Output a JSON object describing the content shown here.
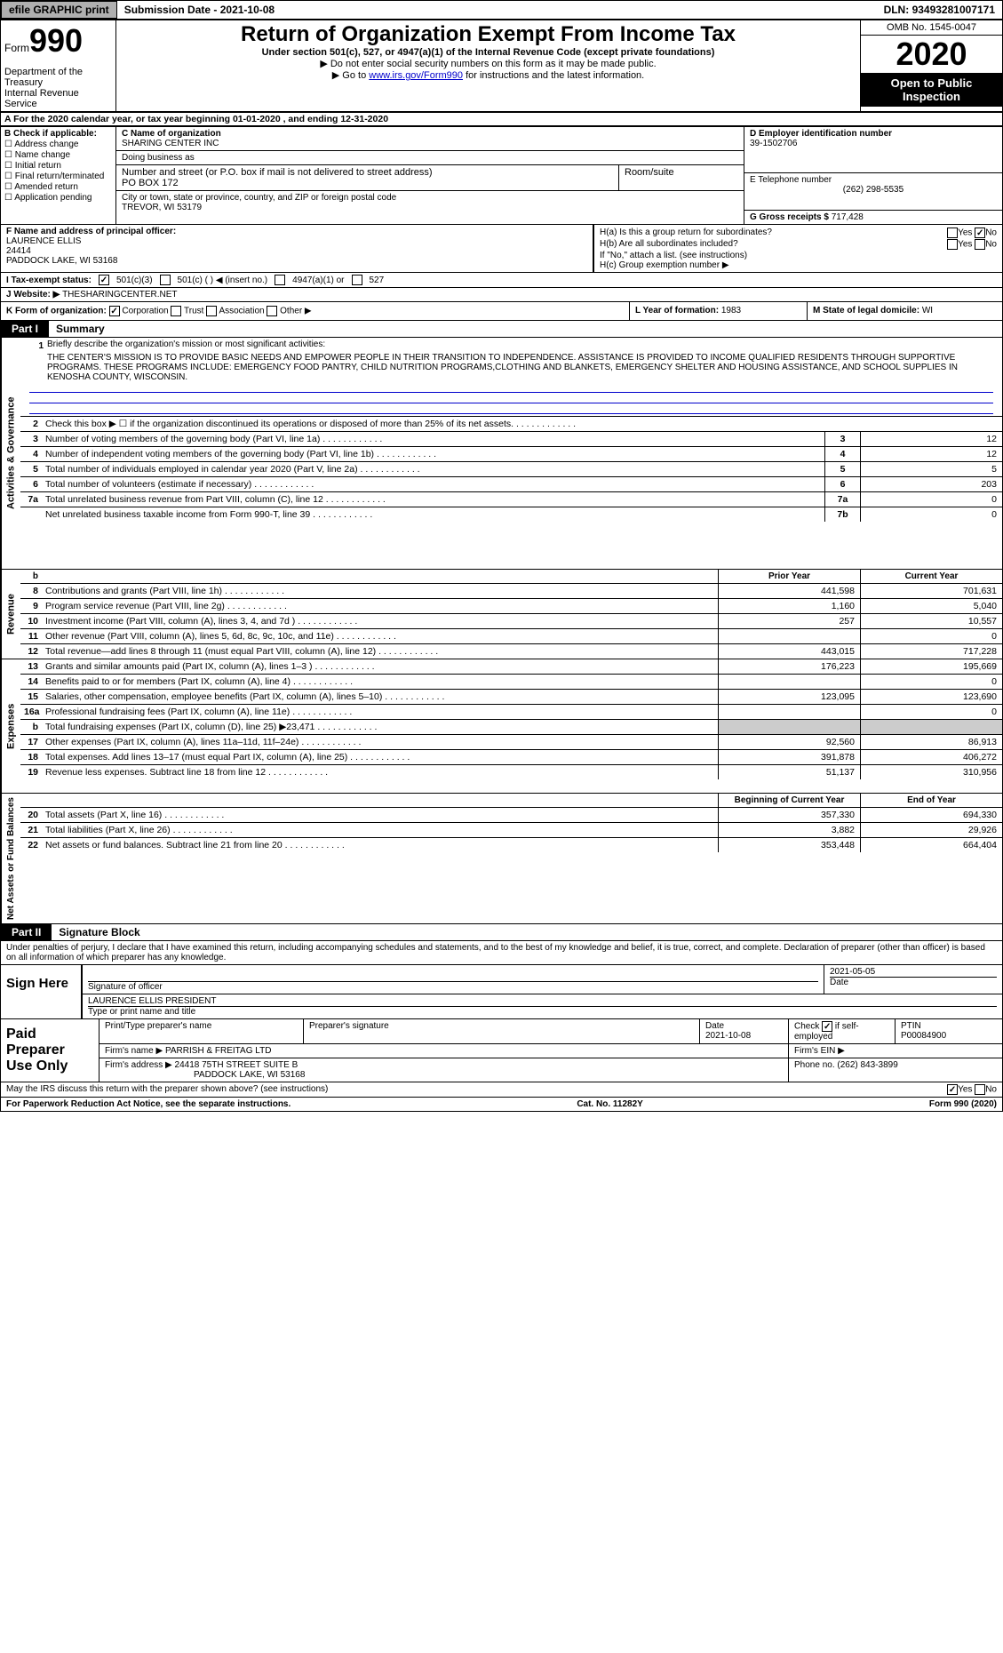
{
  "topbar": {
    "efile": "efile GRAPHIC print",
    "submission_label": "Submission Date - ",
    "submission_date": "2021-10-08",
    "dln_label": "DLN: ",
    "dln": "93493281007171"
  },
  "header": {
    "form_prefix": "Form",
    "form_number": "990",
    "department": "Department of the Treasury\nInternal Revenue Service",
    "title": "Return of Organization Exempt From Income Tax",
    "subtitle": "Under section 501(c), 527, or 4947(a)(1) of the Internal Revenue Code (except private foundations)",
    "note1": "▶ Do not enter social security numbers on this form as it may be made public.",
    "note2_pre": "▶ Go to ",
    "note2_link": "www.irs.gov/Form990",
    "note2_post": " for instructions and the latest information.",
    "omb": "OMB No. 1545-0047",
    "year": "2020",
    "inspection": "Open to Public Inspection"
  },
  "row_a": "A For the 2020 calendar year, or tax year beginning 01-01-2020   , and ending 12-31-2020",
  "col_b": {
    "hdr": "B Check if applicable:",
    "items": [
      "☐ Address change",
      "☐ Name change",
      "☐ Initial return",
      "☐ Final return/terminated",
      "☐ Amended return",
      "☐ Application pending"
    ]
  },
  "col_c": {
    "name_label": "C Name of organization",
    "name": "SHARING CENTER INC",
    "dba_label": "Doing business as",
    "dba": "",
    "addr_label": "Number and street (or P.O. box if mail is not delivered to street address)",
    "addr": "PO BOX 172",
    "suite_label": "Room/suite",
    "suite": "",
    "city_label": "City or town, state or province, country, and ZIP or foreign postal code",
    "city": "TREVOR, WI  53179"
  },
  "col_d": {
    "ein_label": "D Employer identification number",
    "ein": "39-1502706",
    "phone_label": "E Telephone number",
    "phone": "(262) 298-5535",
    "gross_label": "G Gross receipts $ ",
    "gross": "717,428"
  },
  "col_f": {
    "label": "F Name and address of principal officer:",
    "name": "LAURENCE ELLIS",
    "line2": "24414",
    "line3": "PADDOCK LAKE, WI  53168"
  },
  "col_h": {
    "ha_label": "H(a)  Is this a group return for subordinates?",
    "ha_yes": "Yes",
    "ha_no": "No",
    "ha_checked": "no",
    "hb_label": "H(b)  Are all subordinates included?",
    "hb_yes": "Yes",
    "hb_no": "No",
    "hb_note": "If \"No,\" attach a list. (see instructions)",
    "hc_label": "H(c)  Group exemption number ▶"
  },
  "row_i": {
    "label": "I   Tax-exempt status:",
    "c3": "501(c)(3)",
    "c3_checked": true,
    "c": "501(c) (  ) ◀ (insert no.)",
    "a1": "4947(a)(1) or",
    "s527": "527"
  },
  "row_j": {
    "label": "J   Website: ▶ ",
    "value": "THESHARINGCENTER.NET"
  },
  "row_k": {
    "label": "K Form of organization:",
    "corp": "Corporation",
    "corp_checked": true,
    "trust": "Trust",
    "assoc": "Association",
    "other": "Other ▶",
    "l_label": "L Year of formation: ",
    "l_value": "1983",
    "m_label": "M State of legal domicile: ",
    "m_value": "WI"
  },
  "part1": {
    "tag": "Part I",
    "title": "Summary"
  },
  "mission": {
    "label": "Briefly describe the organization's mission or most significant activities:",
    "text": "THE CENTER'S MISSION IS TO PROVIDE BASIC NEEDS AND EMPOWER PEOPLE IN THEIR TRANSITION TO INDEPENDENCE. ASSISTANCE IS PROVIDED TO INCOME QUALIFIED RESIDENTS THROUGH SUPPORTIVE PROGRAMS. THESE PROGRAMS INCLUDE: EMERGENCY FOOD PANTRY, CHILD NUTRITION PROGRAMS,CLOTHING AND BLANKETS, EMERGENCY SHELTER AND HOUSING ASSISTANCE, AND SCHOOL SUPPLIES IN KENOSHA COUNTY, WISCONSIN."
  },
  "gov_lines": [
    {
      "n": "2",
      "t": "Check this box ▶ ☐ if the organization discontinued its operations or disposed of more than 25% of its net assets.",
      "box": "",
      "v": ""
    },
    {
      "n": "3",
      "t": "Number of voting members of the governing body (Part VI, line 1a)",
      "box": "3",
      "v": "12"
    },
    {
      "n": "4",
      "t": "Number of independent voting members of the governing body (Part VI, line 1b)",
      "box": "4",
      "v": "12"
    },
    {
      "n": "5",
      "t": "Total number of individuals employed in calendar year 2020 (Part V, line 2a)",
      "box": "5",
      "v": "5"
    },
    {
      "n": "6",
      "t": "Total number of volunteers (estimate if necessary)",
      "box": "6",
      "v": "203"
    },
    {
      "n": "7a",
      "t": "Total unrelated business revenue from Part VIII, column (C), line 12",
      "box": "7a",
      "v": "0"
    },
    {
      "n": "",
      "t": "Net unrelated business taxable income from Form 990-T, line 39",
      "box": "7b",
      "v": "0"
    }
  ],
  "col_hdrs": {
    "prior": "Prior Year",
    "current": "Current Year"
  },
  "rev_lines": [
    {
      "n": "8",
      "t": "Contributions and grants (Part VIII, line 1h)",
      "p": "441,598",
      "c": "701,631"
    },
    {
      "n": "9",
      "t": "Program service revenue (Part VIII, line 2g)",
      "p": "1,160",
      "c": "5,040"
    },
    {
      "n": "10",
      "t": "Investment income (Part VIII, column (A), lines 3, 4, and 7d )",
      "p": "257",
      "c": "10,557"
    },
    {
      "n": "11",
      "t": "Other revenue (Part VIII, column (A), lines 5, 6d, 8c, 9c, 10c, and 11e)",
      "p": "",
      "c": "0"
    },
    {
      "n": "12",
      "t": "Total revenue—add lines 8 through 11 (must equal Part VIII, column (A), line 12)",
      "p": "443,015",
      "c": "717,228"
    }
  ],
  "exp_lines": [
    {
      "n": "13",
      "t": "Grants and similar amounts paid (Part IX, column (A), lines 1–3 )",
      "p": "176,223",
      "c": "195,669"
    },
    {
      "n": "14",
      "t": "Benefits paid to or for members (Part IX, column (A), line 4)",
      "p": "",
      "c": "0"
    },
    {
      "n": "15",
      "t": "Salaries, other compensation, employee benefits (Part IX, column (A), lines 5–10)",
      "p": "123,095",
      "c": "123,690"
    },
    {
      "n": "16a",
      "t": "Professional fundraising fees (Part IX, column (A), line 11e)",
      "p": "",
      "c": "0"
    },
    {
      "n": "b",
      "t": "Total fundraising expenses (Part IX, column (D), line 25) ▶23,471",
      "p": "__SHADE__",
      "c": "__SHADE__"
    },
    {
      "n": "17",
      "t": "Other expenses (Part IX, column (A), lines 11a–11d, 11f–24e)",
      "p": "92,560",
      "c": "86,913"
    },
    {
      "n": "18",
      "t": "Total expenses. Add lines 13–17 (must equal Part IX, column (A), line 25)",
      "p": "391,878",
      "c": "406,272"
    },
    {
      "n": "19",
      "t": "Revenue less expenses. Subtract line 18 from line 12",
      "p": "51,137",
      "c": "310,956"
    }
  ],
  "net_hdrs": {
    "begin": "Beginning of Current Year",
    "end": "End of Year"
  },
  "net_lines": [
    {
      "n": "20",
      "t": "Total assets (Part X, line 16)",
      "p": "357,330",
      "c": "694,330"
    },
    {
      "n": "21",
      "t": "Total liabilities (Part X, line 26)",
      "p": "3,882",
      "c": "29,926"
    },
    {
      "n": "22",
      "t": "Net assets or fund balances. Subtract line 21 from line 20",
      "p": "353,448",
      "c": "664,404"
    }
  ],
  "part2": {
    "tag": "Part II",
    "title": "Signature Block"
  },
  "sig_decl": "Under penalties of perjury, I declare that I have examined this return, including accompanying schedules and statements, and to the best of my knowledge and belief, it is true, correct, and complete. Declaration of preparer (other than officer) is based on all information of which preparer has any knowledge.",
  "sign": {
    "label": "Sign Here",
    "sig_officer": "Signature of officer",
    "date": "2021-05-05",
    "date_label": "Date",
    "name_title": "LAURENCE ELLIS  PRESIDENT",
    "name_label": "Type or print name and title"
  },
  "prep": {
    "label": "Paid Preparer Use Only",
    "col1": "Print/Type preparer's name",
    "col2": "Preparer's signature",
    "col3_label": "Date",
    "col3": "2021-10-08",
    "col4_label": "Check",
    "col4_txt": "if self-employed",
    "col4_checked": true,
    "col5_label": "PTIN",
    "col5": "P00084900",
    "firm_label": "Firm's name   ▶",
    "firm": "PARRISH & FREITAG LTD",
    "ein_label": "Firm's EIN ▶",
    "ein": "",
    "addr_label": "Firm's address ▶",
    "addr1": "24418 75TH STREET SUITE B",
    "addr2": "PADDOCK LAKE, WI  53168",
    "phone_label": "Phone no. ",
    "phone": "(262) 843-3899"
  },
  "discuss": {
    "q": "May the IRS discuss this return with the preparer shown above? (see instructions)",
    "yes": "Yes",
    "no": "No",
    "checked": "yes"
  },
  "footer": {
    "left": "For Paperwork Reduction Act Notice, see the separate instructions.",
    "mid": "Cat. No. 11282Y",
    "right": "Form 990 (2020)"
  },
  "vtabs": {
    "gov": "Activities & Governance",
    "rev": "Revenue",
    "exp": "Expenses",
    "net": "Net Assets or Fund Balances"
  }
}
